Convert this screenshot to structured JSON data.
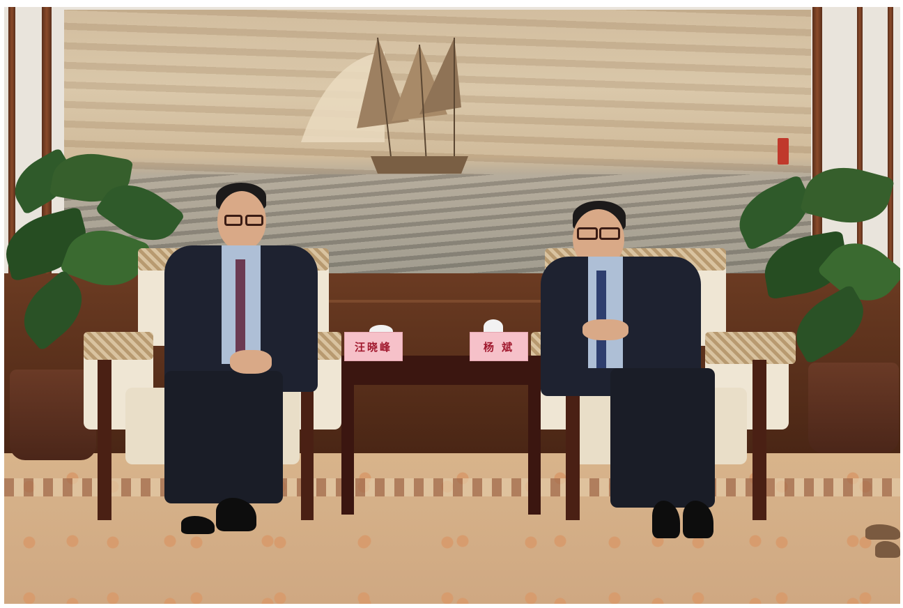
{
  "photo": {
    "description_tags": [
      "meeting-room",
      "two-men-seated",
      "armchairs",
      "name-cards",
      "tapestry"
    ]
  },
  "name_cards": {
    "left": "汪晓峰",
    "right": "杨 斌"
  },
  "colors": {
    "name_card_bg": "#f6c1c9",
    "name_card_text": "#a0182d",
    "wood": "#4a2615",
    "carpet": "#d8b48b"
  }
}
